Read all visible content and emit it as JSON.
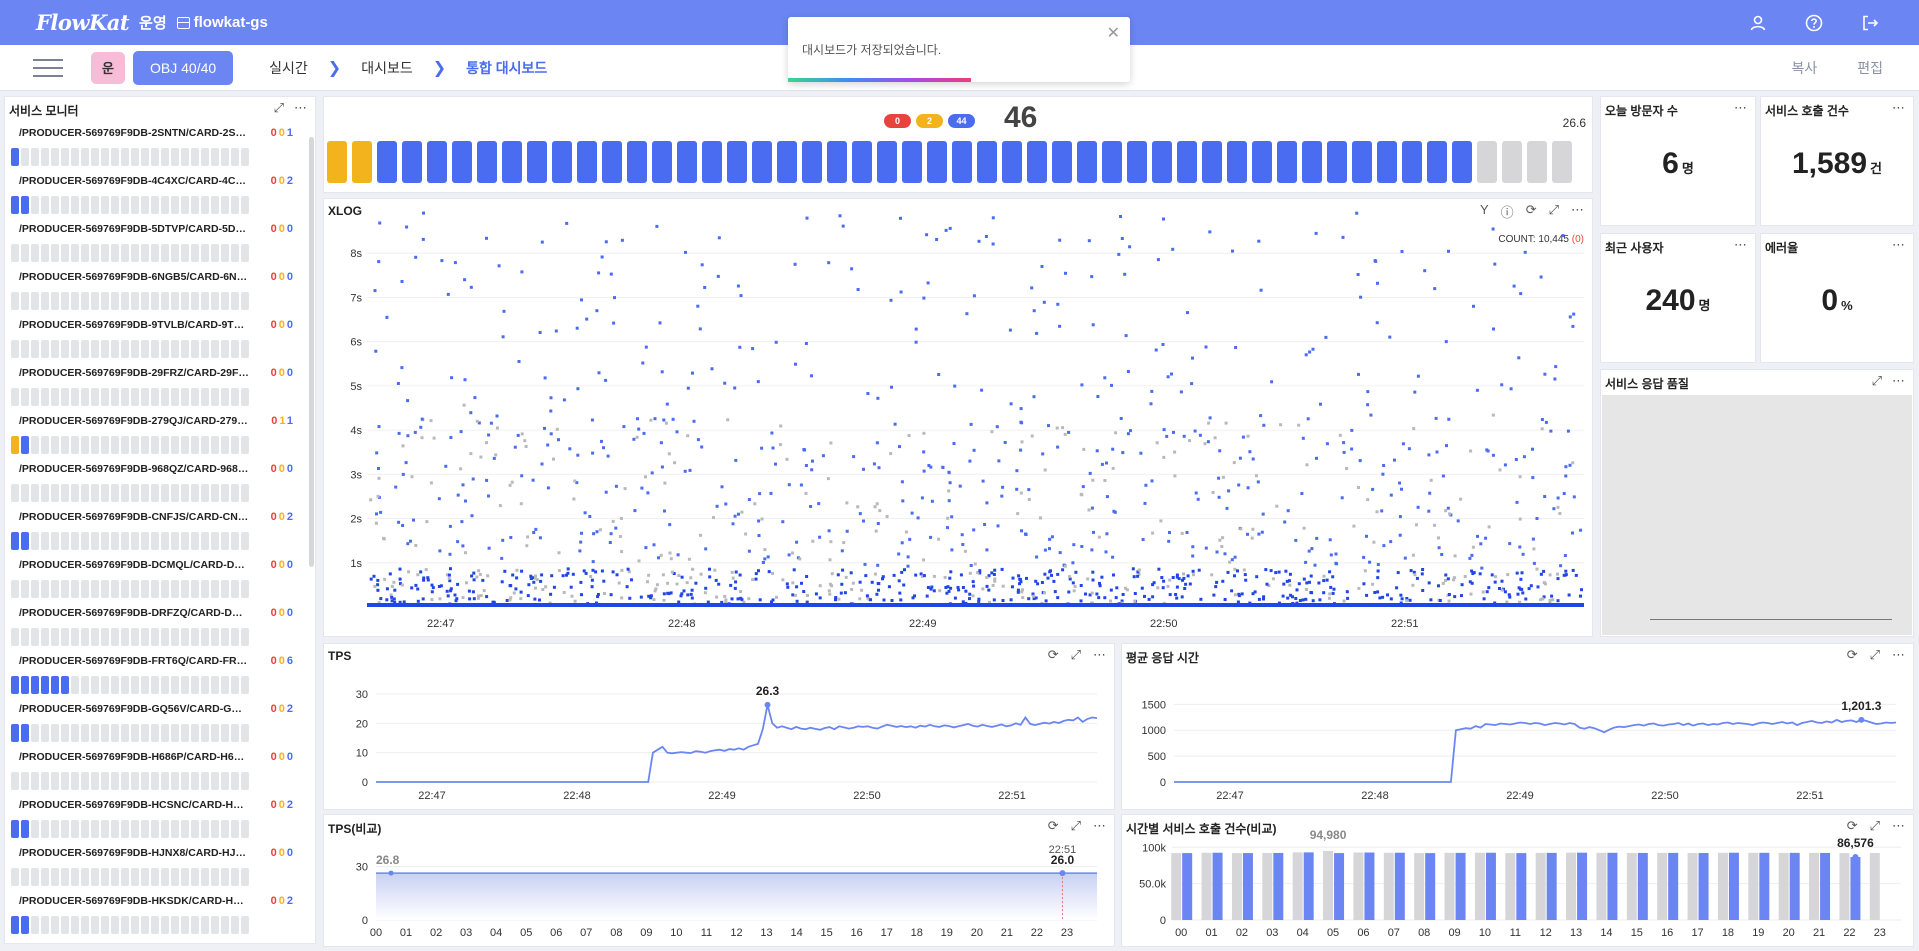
{
  "topbar": {
    "logo": "FlowKat",
    "env": "운영",
    "server": "flowkat-gs",
    "icons": [
      "user-icon",
      "help-icon",
      "logout-icon"
    ]
  },
  "subbar": {
    "badge": "운",
    "obj_button": "OBJ 40/40",
    "breadcrumb": [
      "실시간",
      "대시보드",
      "통합 대시보드"
    ],
    "copy_label": "복사",
    "edit_label": "편집"
  },
  "toast": {
    "message": "대시보드가 저장되었습니다."
  },
  "service_monitor": {
    "title": "서비스 모니터",
    "items": [
      {
        "name": "/PRODUCER-569769F9DB-2SNTN/CARD-2SNTN",
        "red": "0",
        "yellow": "0",
        "blue": "1",
        "bars": "b"
      },
      {
        "name": "/PRODUCER-569769F9DB-4C4XC/CARD-4C4XC",
        "red": "0",
        "yellow": "0",
        "blue": "2",
        "bars": "bb"
      },
      {
        "name": "/PRODUCER-569769F9DB-5DTVP/CARD-5DTVP",
        "red": "0",
        "yellow": "0",
        "blue": "0",
        "bars": ""
      },
      {
        "name": "/PRODUCER-569769F9DB-6NGB5/CARD-6NGB5",
        "red": "0",
        "yellow": "0",
        "blue": "0",
        "bars": ""
      },
      {
        "name": "/PRODUCER-569769F9DB-9TVLB/CARD-9TVLB",
        "red": "0",
        "yellow": "0",
        "blue": "0",
        "bars": ""
      },
      {
        "name": "/PRODUCER-569769F9DB-29FRZ/CARD-29FRZ",
        "red": "0",
        "yellow": "0",
        "blue": "0",
        "bars": ""
      },
      {
        "name": "/PRODUCER-569769F9DB-279QJ/CARD-279QJ",
        "red": "0",
        "yellow": "1",
        "blue": "1",
        "bars": "yb"
      },
      {
        "name": "/PRODUCER-569769F9DB-968QZ/CARD-968QZ",
        "red": "0",
        "yellow": "0",
        "blue": "0",
        "bars": ""
      },
      {
        "name": "/PRODUCER-569769F9DB-CNFJS/CARD-CNFJS",
        "red": "0",
        "yellow": "0",
        "blue": "2",
        "bars": "bb"
      },
      {
        "name": "/PRODUCER-569769F9DB-DCMQL/CARD-DC…",
        "red": "0",
        "yellow": "0",
        "blue": "0",
        "bars": ""
      },
      {
        "name": "/PRODUCER-569769F9DB-DRFZQ/CARD-DRFZQ",
        "red": "0",
        "yellow": "0",
        "blue": "0",
        "bars": ""
      },
      {
        "name": "/PRODUCER-569769F9DB-FRT6Q/CARD-FRT6Q",
        "red": "0",
        "yellow": "0",
        "blue": "6",
        "bars": "bbbbbb"
      },
      {
        "name": "/PRODUCER-569769F9DB-GQ56V/CARD-GQ56V",
        "red": "0",
        "yellow": "0",
        "blue": "2",
        "bars": "bb"
      },
      {
        "name": "/PRODUCER-569769F9DB-H686P/CARD-H686P",
        "red": "0",
        "yellow": "0",
        "blue": "0",
        "bars": ""
      },
      {
        "name": "/PRODUCER-569769F9DB-HCSNC/CARD-HCS…",
        "red": "0",
        "yellow": "0",
        "blue": "2",
        "bars": "bb"
      },
      {
        "name": "/PRODUCER-569769F9DB-HJNX8/CARD-HJNX8",
        "red": "0",
        "yellow": "0",
        "blue": "0",
        "bars": ""
      },
      {
        "name": "/PRODUCER-569769F9DB-HKSDK/CARD-HKS…",
        "red": "0",
        "yellow": "0",
        "blue": "2",
        "bars": "bb"
      }
    ]
  },
  "header_strip": {
    "pill_red": "0",
    "pill_yellow": "2",
    "pill_blue": "44",
    "total": "46",
    "right_value": "26.6",
    "bars": "yybbbbbbbbbbbbbbbbbbbbbbbbbbbbbbbbbbbbbbbbbbbbgggg",
    "colors": {
      "red": "#e8433c",
      "yellow": "#f2b31d",
      "blue": "#4a6cf0",
      "gray": "#d6d6d8"
    }
  },
  "stats": {
    "visitors": {
      "title": "오늘 방문자 수",
      "value": "6",
      "unit": "명"
    },
    "calls": {
      "title": "서비스 호출 건수",
      "value": "1,589",
      "unit": "건"
    },
    "recent_users": {
      "title": "최근 사용자",
      "value": "240",
      "unit": "명"
    },
    "error_rate": {
      "title": "에러율",
      "value": "0",
      "unit": "%"
    },
    "quality": {
      "title": "서비스 응답 품질"
    }
  },
  "chart_data": [
    {
      "id": "xlog",
      "type": "scatter",
      "title": "XLOG",
      "count_label": "COUNT: 10,445",
      "count_error": "(0)",
      "x_ticks": [
        "22:47",
        "22:48",
        "22:49",
        "22:50",
        "22:51"
      ],
      "y_ticks": [
        "1s",
        "2s",
        "3s",
        "4s",
        "5s",
        "6s",
        "7s",
        "8s"
      ],
      "x_range_min": [
        22.77,
        22.88
      ],
      "ylim": [
        0,
        9
      ],
      "colors": {
        "normal": "#4a6cf0",
        "dense": "#2146e6",
        "gray": "#b9b9bd"
      }
    },
    {
      "id": "tps",
      "type": "line",
      "title": "TPS",
      "x_ticks": [
        "22:47",
        "22:48",
        "22:49",
        "22:50",
        "22:51"
      ],
      "y_ticks": [
        "0",
        "10",
        "20",
        "30"
      ],
      "ylim": [
        0,
        30
      ],
      "peak_label": "26.3",
      "peak_value": 26.3,
      "series": [
        {
          "values": [
            0,
            0,
            0,
            0,
            0,
            0,
            0,
            0,
            0,
            0,
            0,
            0,
            0,
            0,
            0,
            0,
            0,
            0,
            0,
            0,
            0,
            0,
            0,
            0,
            0,
            0,
            0,
            0,
            0,
            0,
            0,
            0,
            0,
            0,
            0,
            0,
            0,
            0,
            0,
            0,
            0,
            0,
            0,
            0,
            0,
            0,
            0,
            0,
            0,
            0,
            0,
            0,
            0,
            0,
            0,
            0,
            0,
            0,
            10,
            11,
            12,
            10,
            9.8,
            10,
            10.2,
            10,
            9.9,
            10.5,
            10.3,
            10,
            10.5,
            10.8,
            11,
            10.6,
            11.2,
            11,
            11.5,
            11,
            12,
            12.5,
            13,
            18,
            26.3,
            20,
            18.5,
            19,
            18.5,
            18,
            18.8,
            18.2,
            18,
            18.5,
            18.1,
            17.8,
            18.4,
            18.7,
            18,
            19,
            18.6,
            18.2,
            18.5,
            19,
            18.8,
            19,
            18.5,
            18.2,
            18.9,
            19.5,
            19.2,
            18.8,
            19.1,
            18.7,
            19,
            18.5,
            19.2,
            18.9,
            19.5,
            19,
            18.8,
            19.3,
            19.1,
            18.6,
            19,
            19.4,
            19.8,
            19.2,
            18.9,
            19.5,
            19.1,
            18.8,
            19.2,
            19.6,
            19,
            19.3,
            20,
            19.5,
            22,
            19.8,
            19.4,
            19.8,
            20.2,
            19.9,
            20.5,
            20.1,
            20.8,
            21.2,
            21,
            22,
            20.5,
            21.5,
            22,
            21.8
          ]
        }
      ]
    },
    {
      "id": "avg_response",
      "type": "line",
      "title": "평균 응답 시간",
      "x_ticks": [
        "22:47",
        "22:48",
        "22:49",
        "22:50",
        "22:51"
      ],
      "y_ticks": [
        "0",
        "500",
        "1000",
        "1500"
      ],
      "ylim": [
        0,
        1700
      ],
      "peak_label": "1,201.3",
      "peak_value": 1201.3,
      "series": [
        {
          "values": [
            0,
            0,
            0,
            0,
            0,
            0,
            0,
            0,
            0,
            0,
            0,
            0,
            0,
            0,
            0,
            0,
            0,
            0,
            0,
            0,
            0,
            0,
            0,
            0,
            0,
            0,
            0,
            0,
            0,
            0,
            0,
            0,
            0,
            0,
            0,
            0,
            0,
            0,
            0,
            0,
            0,
            0,
            0,
            0,
            0,
            0,
            0,
            0,
            0,
            0,
            0,
            0,
            0,
            0,
            0,
            0,
            0,
            1000,
            1020,
            1040,
            1030,
            1080,
            1050,
            1120,
            1110,
            1100,
            1130,
            1120,
            1110,
            1130,
            1150,
            1140,
            1120,
            1140,
            1130,
            1100,
            1120,
            1140,
            1130,
            1110,
            1140,
            1120,
            1050,
            1030,
            1060,
            1040,
            1000,
            960,
            1010,
            1050,
            1070,
            1060,
            1080,
            1100,
            1110,
            1090,
            1120,
            1130,
            1100,
            1090,
            1110,
            1120,
            1140,
            1100,
            1130,
            1090,
            1120,
            1130,
            1100,
            1120,
            1110,
            1140,
            1150,
            1120,
            1140,
            1130,
            1120,
            1100,
            1130,
            1150,
            1140,
            1120,
            1140,
            1160,
            1130,
            1150,
            1100,
            1140,
            1160,
            1180,
            1150,
            1140,
            1170,
            1150,
            1200,
            1160,
            1180,
            1190,
            1160,
            1201.3,
            1180,
            1150,
            1120,
            1130,
            1150,
            1140,
            1150
          ]
        }
      ]
    },
    {
      "id": "tps_compare",
      "type": "area",
      "title": "TPS(비교)",
      "x_ticks": [
        "00",
        "01",
        "02",
        "03",
        "04",
        "05",
        "06",
        "07",
        "08",
        "09",
        "10",
        "11",
        "12",
        "13",
        "14",
        "15",
        "16",
        "17",
        "18",
        "19",
        "20",
        "21",
        "22",
        "23"
      ],
      "y_ticks": [
        "0",
        "30"
      ],
      "ylim": [
        0,
        45
      ],
      "left_label": "26.8",
      "right_time": "22:51",
      "right_label": "26.0",
      "series": [
        {
          "name": "today",
          "value": 26.4
        }
      ]
    },
    {
      "id": "hourly_calls",
      "type": "bar",
      "title": "시간별 서비스 호출 건수(비교)",
      "categories": [
        "00",
        "01",
        "02",
        "03",
        "04",
        "05",
        "06",
        "07",
        "08",
        "09",
        "10",
        "11",
        "12",
        "13",
        "14",
        "15",
        "16",
        "17",
        "18",
        "19",
        "20",
        "21",
        "22",
        "23"
      ],
      "y_ticks": [
        "0",
        "50.0k",
        "100k"
      ],
      "ylim": [
        0,
        110000
      ],
      "peak_left_label": "94,980",
      "peak_right_label": "86,576",
      "series": [
        {
          "name": "compare",
          "values": [
            92000,
            92500,
            92000,
            92200,
            93000,
            94980,
            92800,
            92500,
            92000,
            92300,
            92500,
            92000,
            92300,
            92600,
            92400,
            92200,
            92300,
            92100,
            92500,
            92400,
            92300,
            92200,
            92000,
            92100
          ]
        },
        {
          "name": "today",
          "values": [
            92000,
            92500,
            92000,
            92200,
            93000,
            92000,
            92800,
            92500,
            92000,
            92300,
            92500,
            92000,
            92300,
            92600,
            92400,
            92200,
            92300,
            92100,
            92500,
            92400,
            92300,
            92200,
            86576,
            0
          ]
        }
      ],
      "colors": {
        "compare": "#d6d6d8",
        "today": "#6b86f2"
      }
    }
  ]
}
